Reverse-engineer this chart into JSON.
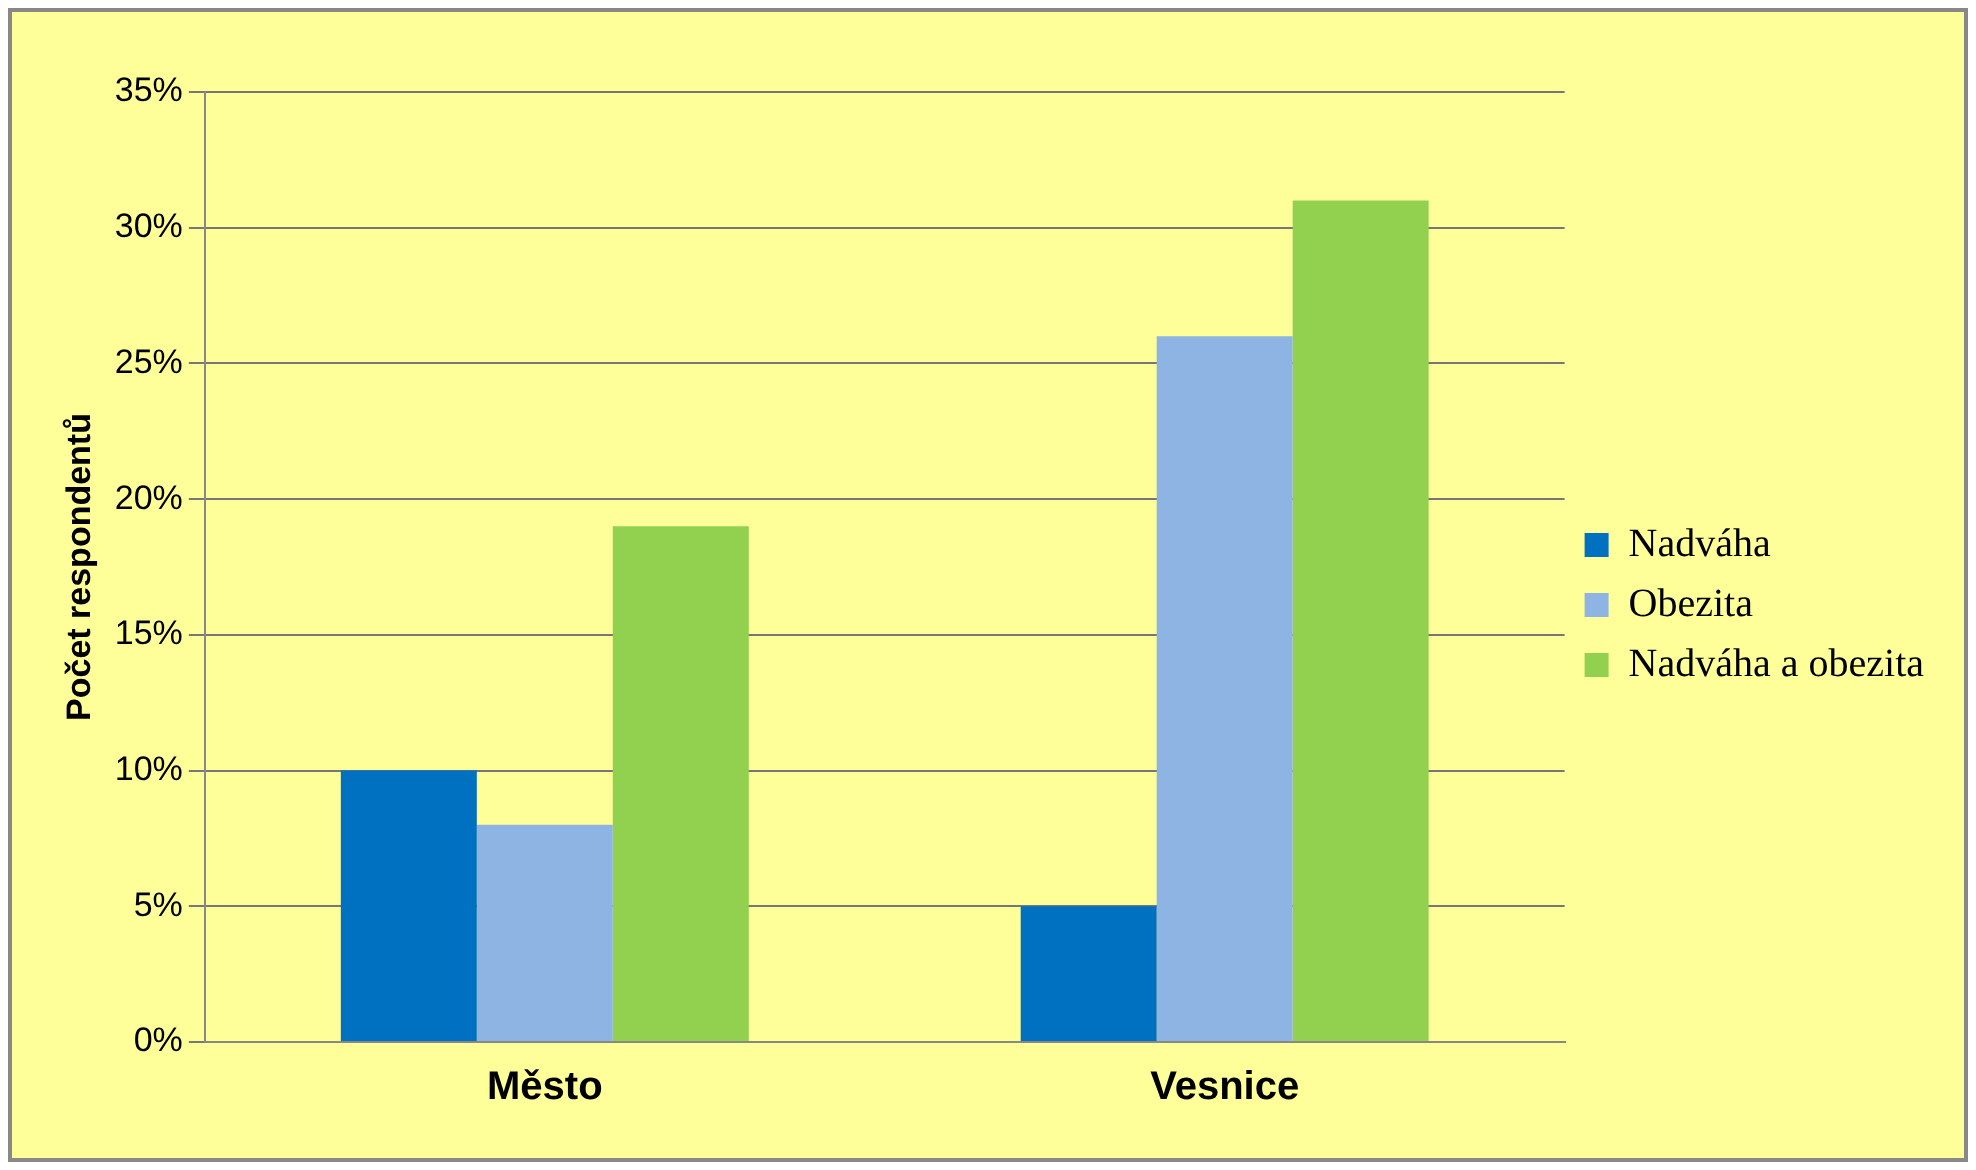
{
  "chart_data": {
    "type": "bar",
    "ylabel": "Počet respondentů",
    "categories": [
      "Město",
      "Vesnice"
    ],
    "series": [
      {
        "name": "Nadváha",
        "color": "#0070c0",
        "values": [
          10,
          5
        ]
      },
      {
        "name": "Obezita",
        "color": "#8db4e2",
        "values": [
          8,
          26
        ]
      },
      {
        "name": "Nadváha a obezita",
        "color": "#92d050",
        "values": [
          19,
          31
        ]
      }
    ],
    "ylim": [
      0,
      35
    ],
    "yticks": [
      {
        "value": 0,
        "label": "0%"
      },
      {
        "value": 5,
        "label": "5%"
      },
      {
        "value": 10,
        "label": "10%"
      },
      {
        "value": 15,
        "label": "15%"
      },
      {
        "value": 20,
        "label": "20%"
      },
      {
        "value": 25,
        "label": "25%"
      },
      {
        "value": 30,
        "label": "30%"
      },
      {
        "value": 35,
        "label": "35%"
      }
    ],
    "grid": "y",
    "legend": "right"
  }
}
